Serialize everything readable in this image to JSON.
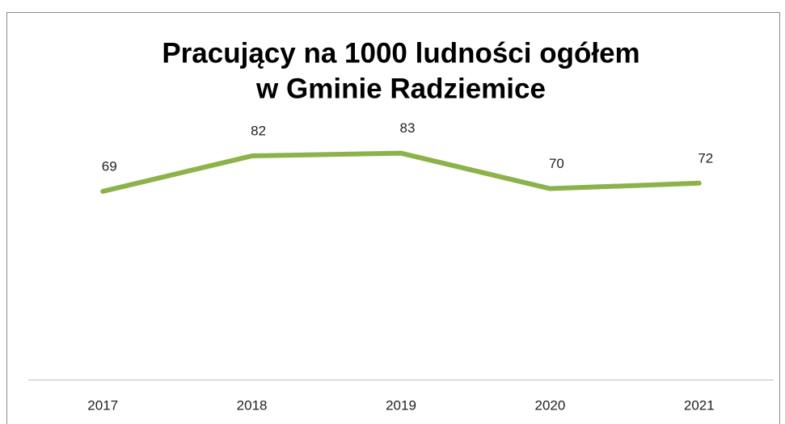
{
  "chart_data": {
    "type": "line",
    "title": [
      "Pracujący na 1000 ludności ogółem",
      "w Gminie Radziemice"
    ],
    "categories": [
      "2017",
      "2018",
      "2019",
      "2020",
      "2021"
    ],
    "values": [
      69,
      82,
      83,
      70,
      72
    ],
    "color": "#8db24b",
    "ylim": [
      0,
      90
    ]
  }
}
